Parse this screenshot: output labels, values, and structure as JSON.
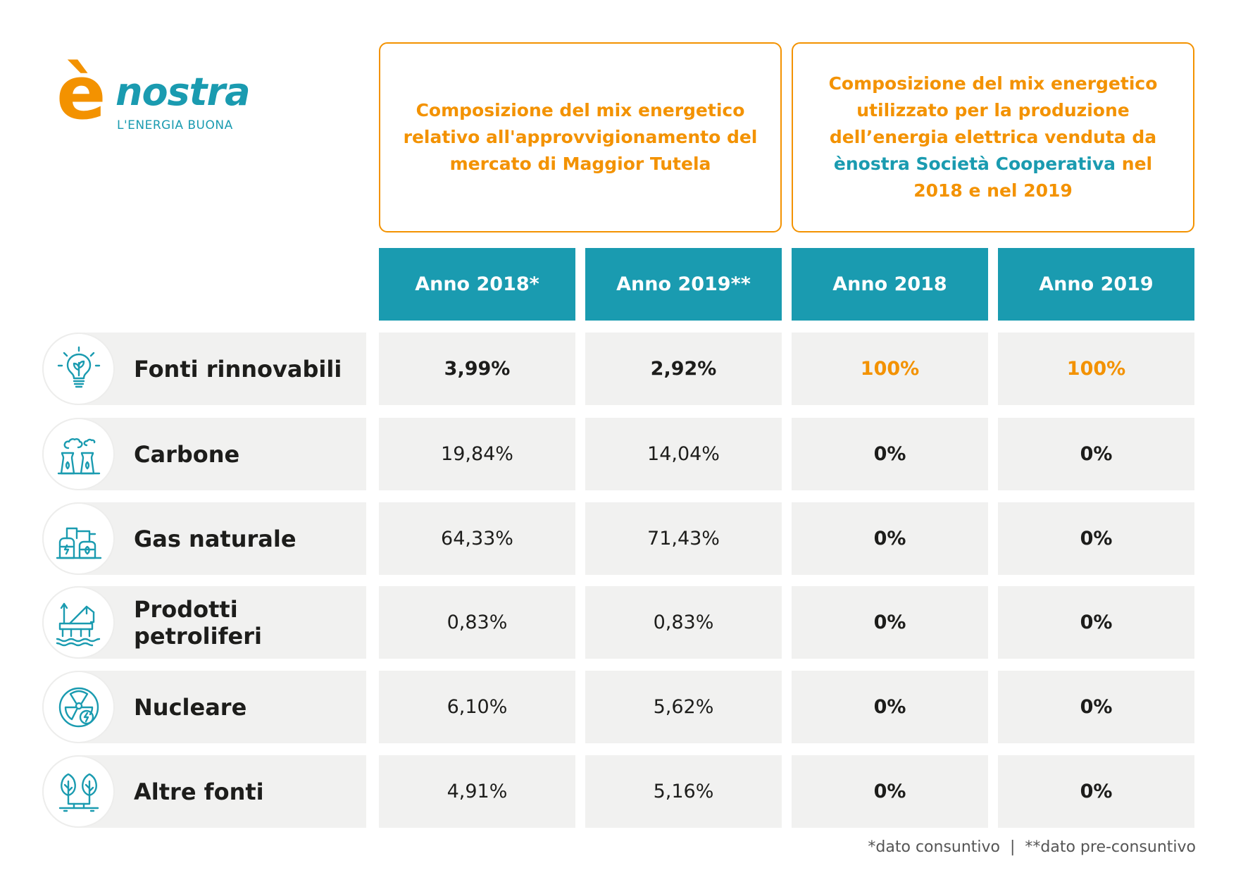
{
  "logo": {
    "mark": "è",
    "word": "nostra",
    "tagline": "L'ENERGIA BUONA"
  },
  "header": {
    "box1": "Composizione del mix energetico relativo all'approvvigionamento del mercato di Maggior Tutela",
    "box2_part1": "Composizione del mix energetico utilizzato per la produzione dell’energia elettrica venduta da",
    "box2_highlight": "ènostra Società Cooperativa",
    "box2_part2": "nel 2018 e nel 2019"
  },
  "columns": [
    "Anno 2018*",
    "Anno 2019**",
    "Anno 2018",
    "Anno 2019"
  ],
  "rows": [
    {
      "label": "Fonti rinnovabili",
      "icon": "lightbulb-leaf-icon",
      "values": [
        "3,99%",
        "2,92%",
        "100%",
        "100%"
      ]
    },
    {
      "label": "Carbone",
      "icon": "cooling-towers-icon",
      "values": [
        "19,84%",
        "14,04%",
        "0%",
        "0%"
      ]
    },
    {
      "label": "Gas naturale",
      "icon": "gas-plant-icon",
      "values": [
        "64,33%",
        "71,43%",
        "0%",
        "0%"
      ]
    },
    {
      "label": "Prodotti petroliferi",
      "icon": "oil-rig-icon",
      "values": [
        "0,83%",
        "0,83%",
        "0%",
        "0%"
      ]
    },
    {
      "label": "Nucleare",
      "icon": "nuclear-icon",
      "values": [
        "6,10%",
        "5,62%",
        "0%",
        "0%"
      ]
    },
    {
      "label": "Altre fonti",
      "icon": "leaves-plug-icon",
      "values": [
        "4,91%",
        "5,16%",
        "0%",
        "0%"
      ]
    }
  ],
  "footnote": "*dato consuntivo  |  **dato pre-consuntivo",
  "colors": {
    "orange": "#f39200",
    "teal": "#1a9bb0",
    "row_bg": "#f1f1f0"
  }
}
